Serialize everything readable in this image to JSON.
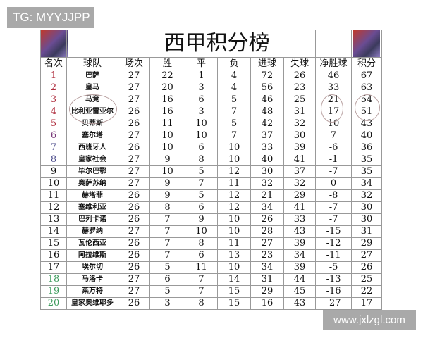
{
  "watermarks": {
    "top_left": "TG: MYYJJPP",
    "bottom_right": "www.jxlzgl.com"
  },
  "table": {
    "title": "西甲积分榜",
    "headers": [
      "名次",
      "球队",
      "场次",
      "胜",
      "平",
      "负",
      "进球",
      "失球",
      "净胜球",
      "积分"
    ],
    "rank_colors": {
      "cl": "#b03040",
      "el": "#7a3a7a",
      "conf": "#4a4a8a",
      "relegation": "#3a9a5a"
    },
    "rows": [
      [
        "1",
        "巴萨",
        "27",
        "22",
        "1",
        "4",
        "72",
        "26",
        "46",
        "67"
      ],
      [
        "2",
        "皇马",
        "27",
        "20",
        "3",
        "4",
        "56",
        "23",
        "33",
        "63"
      ],
      [
        "3",
        "马竞",
        "27",
        "16",
        "6",
        "5",
        "46",
        "25",
        "21",
        "54"
      ],
      [
        "4",
        "比利亚雷亚尔",
        "26",
        "16",
        "3",
        "7",
        "48",
        "31",
        "17",
        "51"
      ],
      [
        "5",
        "贝蒂斯",
        "26",
        "11",
        "10",
        "5",
        "42",
        "32",
        "10",
        "43"
      ],
      [
        "6",
        "塞尔塔",
        "27",
        "10",
        "10",
        "7",
        "37",
        "30",
        "7",
        "40"
      ],
      [
        "7",
        "西班牙人",
        "26",
        "10",
        "6",
        "10",
        "33",
        "39",
        "-6",
        "36"
      ],
      [
        "8",
        "皇家社会",
        "27",
        "9",
        "8",
        "10",
        "40",
        "41",
        "-1",
        "35"
      ],
      [
        "9",
        "毕尔巴鄂",
        "27",
        "10",
        "5",
        "12",
        "30",
        "37",
        "-7",
        "35"
      ],
      [
        "10",
        "奥萨苏纳",
        "27",
        "9",
        "7",
        "11",
        "32",
        "32",
        "0",
        "34"
      ],
      [
        "11",
        "赫塔菲",
        "26",
        "9",
        "5",
        "12",
        "21",
        "29",
        "-8",
        "32"
      ],
      [
        "12",
        "塞维利亚",
        "26",
        "8",
        "6",
        "12",
        "34",
        "41",
        "-7",
        "30"
      ],
      [
        "13",
        "巴列卡诺",
        "26",
        "7",
        "9",
        "10",
        "26",
        "33",
        "-7",
        "30"
      ],
      [
        "14",
        "赫罗纳",
        "27",
        "7",
        "10",
        "10",
        "28",
        "43",
        "-15",
        "31"
      ],
      [
        "15",
        "瓦伦西亚",
        "26",
        "7",
        "8",
        "11",
        "27",
        "39",
        "-12",
        "29"
      ],
      [
        "16",
        "阿拉维斯",
        "26",
        "7",
        "6",
        "13",
        "23",
        "34",
        "-11",
        "27"
      ],
      [
        "17",
        "埃尔切",
        "26",
        "5",
        "11",
        "10",
        "34",
        "39",
        "-5",
        "26"
      ],
      [
        "18",
        "马洛卡",
        "27",
        "6",
        "7",
        "14",
        "31",
        "44",
        "-13",
        "25"
      ],
      [
        "19",
        "莱万特",
        "27",
        "5",
        "7",
        "15",
        "29",
        "45",
        "-16",
        "22"
      ],
      [
        "20",
        "皇家奥维耶多",
        "26",
        "3",
        "8",
        "15",
        "16",
        "43",
        "-27",
        "17"
      ]
    ]
  }
}
